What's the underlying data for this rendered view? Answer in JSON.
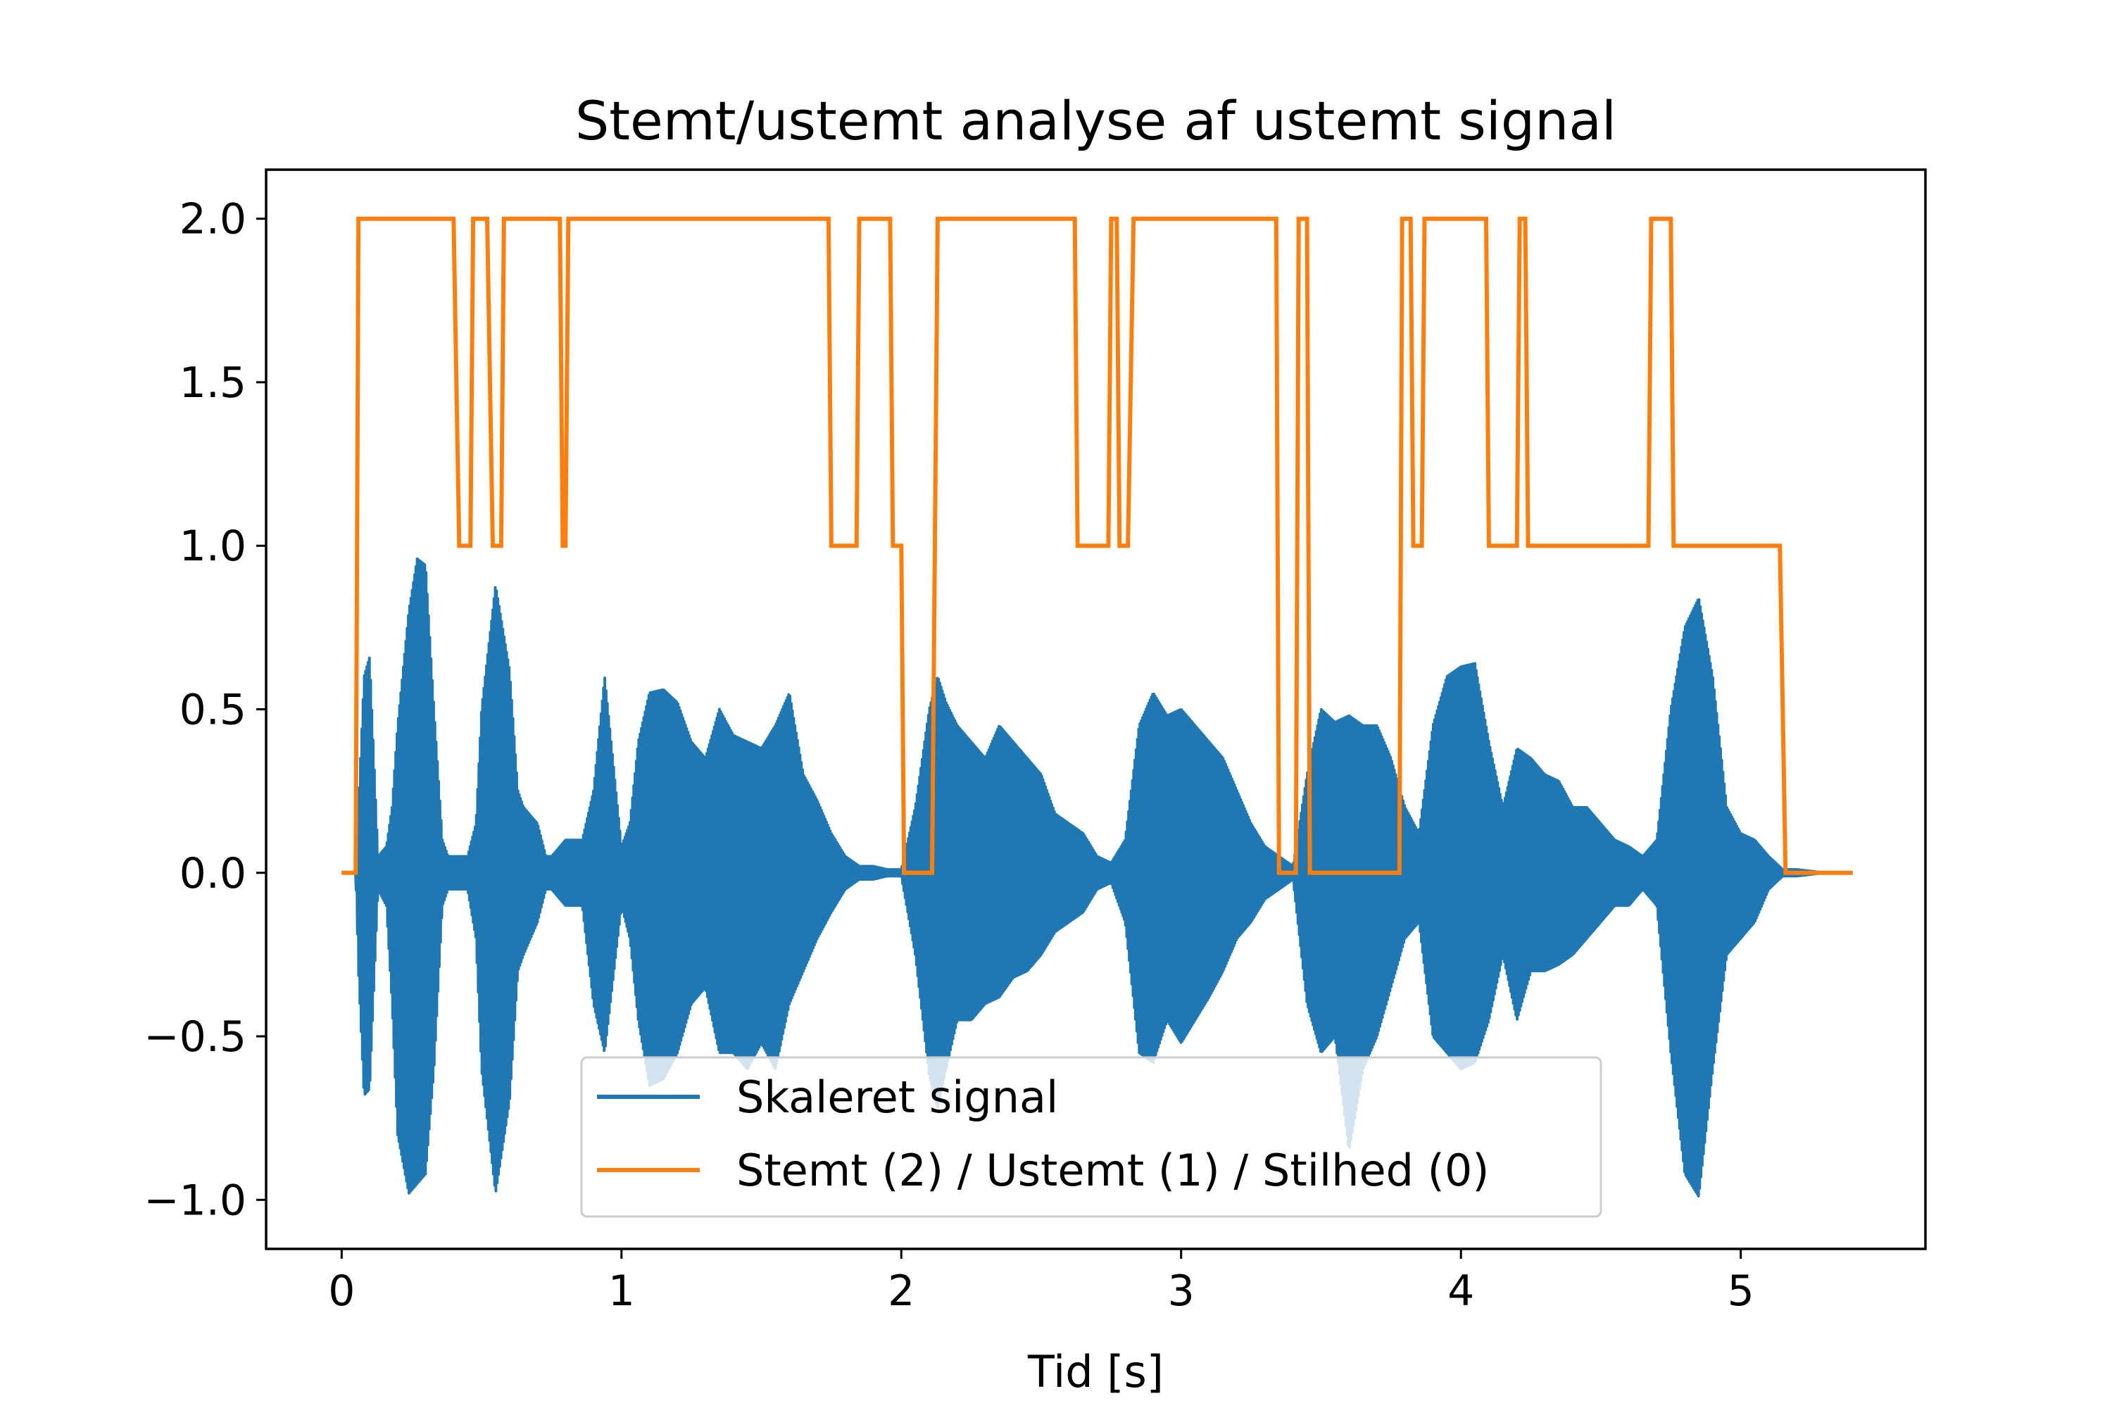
{
  "chart_data": {
    "type": "line",
    "title": "Stemt/ustemt analyse af ustemt signal",
    "xlabel": "Tid [s]",
    "ylabel": "",
    "xlim": [
      -0.27,
      5.66
    ],
    "ylim": [
      -1.15,
      2.15
    ],
    "xticks": [
      0,
      1,
      2,
      3,
      4,
      5
    ],
    "xtick_labels": [
      "0",
      "1",
      "2",
      "3",
      "4",
      "5"
    ],
    "yticks": [
      -1.0,
      -0.5,
      0.0,
      0.5,
      1.0,
      1.5,
      2.0
    ],
    "ytick_labels": [
      "−1.0",
      "−0.5",
      "0.0",
      "0.5",
      "1.0",
      "1.5",
      "2.0"
    ],
    "grid": false,
    "legend_position": "lower center",
    "series": [
      {
        "name": "Skaleret signal",
        "color": "#1f77b4",
        "style": "oscillating waveform shown by its envelope",
        "envelope": {
          "t": [
            0.0,
            0.05,
            0.06,
            0.08,
            0.1,
            0.13,
            0.16,
            0.18,
            0.2,
            0.24,
            0.27,
            0.3,
            0.33,
            0.36,
            0.38,
            0.41,
            0.45,
            0.48,
            0.5,
            0.55,
            0.6,
            0.63,
            0.65,
            0.7,
            0.73,
            0.75,
            0.8,
            0.86,
            0.9,
            0.94,
            1.0,
            1.03,
            1.06,
            1.1,
            1.15,
            1.2,
            1.25,
            1.3,
            1.35,
            1.4,
            1.45,
            1.5,
            1.55,
            1.6,
            1.65,
            1.7,
            1.75,
            1.8,
            1.85,
            1.9,
            1.95,
            2.0,
            2.05,
            2.1,
            2.13,
            2.16,
            2.2,
            2.25,
            2.3,
            2.35,
            2.4,
            2.45,
            2.5,
            2.55,
            2.6,
            2.65,
            2.7,
            2.75,
            2.8,
            2.85,
            2.9,
            2.95,
            3.0,
            3.05,
            3.1,
            3.15,
            3.2,
            3.25,
            3.3,
            3.35,
            3.4,
            3.45,
            3.5,
            3.55,
            3.6,
            3.65,
            3.7,
            3.75,
            3.8,
            3.85,
            3.9,
            3.95,
            4.0,
            4.05,
            4.1,
            4.15,
            4.2,
            4.25,
            4.3,
            4.35,
            4.4,
            4.45,
            4.5,
            4.55,
            4.6,
            4.65,
            4.7,
            4.75,
            4.8,
            4.85,
            4.9,
            4.95,
            5.0,
            5.05,
            5.1,
            5.15,
            5.2,
            5.3,
            5.4
          ],
          "upper": [
            0.0,
            0.0,
            0.2,
            0.6,
            0.66,
            0.05,
            0.08,
            0.2,
            0.45,
            0.8,
            0.96,
            0.94,
            0.5,
            0.1,
            0.05,
            0.05,
            0.05,
            0.15,
            0.5,
            0.88,
            0.62,
            0.25,
            0.2,
            0.15,
            0.05,
            0.05,
            0.1,
            0.1,
            0.25,
            0.6,
            0.08,
            0.15,
            0.4,
            0.55,
            0.56,
            0.52,
            0.4,
            0.35,
            0.5,
            0.42,
            0.4,
            0.38,
            0.45,
            0.55,
            0.3,
            0.22,
            0.12,
            0.05,
            0.02,
            0.02,
            0.01,
            0.01,
            0.2,
            0.5,
            0.6,
            0.52,
            0.45,
            0.4,
            0.35,
            0.45,
            0.4,
            0.35,
            0.3,
            0.18,
            0.15,
            0.12,
            0.05,
            0.03,
            0.1,
            0.45,
            0.55,
            0.48,
            0.5,
            0.45,
            0.4,
            0.35,
            0.25,
            0.15,
            0.08,
            0.05,
            0.02,
            0.3,
            0.5,
            0.46,
            0.48,
            0.45,
            0.45,
            0.35,
            0.2,
            0.12,
            0.45,
            0.6,
            0.63,
            0.64,
            0.4,
            0.2,
            0.38,
            0.35,
            0.3,
            0.28,
            0.2,
            0.2,
            0.15,
            0.1,
            0.08,
            0.05,
            0.1,
            0.5,
            0.75,
            0.84,
            0.6,
            0.2,
            0.12,
            0.1,
            0.05,
            0.01,
            0.01,
            0.0,
            0.0
          ],
          "lower": [
            0.0,
            0.0,
            -0.3,
            -0.68,
            -0.66,
            -0.05,
            -0.1,
            -0.4,
            -0.8,
            -0.98,
            -0.95,
            -0.92,
            -0.6,
            -0.1,
            -0.05,
            -0.05,
            -0.05,
            -0.2,
            -0.6,
            -0.98,
            -0.7,
            -0.3,
            -0.25,
            -0.15,
            -0.05,
            -0.05,
            -0.1,
            -0.1,
            -0.4,
            -0.55,
            -0.1,
            -0.2,
            -0.45,
            -0.65,
            -0.63,
            -0.55,
            -0.4,
            -0.35,
            -0.55,
            -0.55,
            -0.6,
            -0.52,
            -0.6,
            -0.4,
            -0.3,
            -0.2,
            -0.12,
            -0.05,
            -0.02,
            -0.02,
            -0.01,
            -0.01,
            -0.25,
            -0.62,
            -0.72,
            -0.6,
            -0.45,
            -0.45,
            -0.4,
            -0.38,
            -0.32,
            -0.3,
            -0.25,
            -0.18,
            -0.15,
            -0.12,
            -0.05,
            -0.03,
            -0.15,
            -0.55,
            -0.58,
            -0.45,
            -0.52,
            -0.45,
            -0.38,
            -0.3,
            -0.2,
            -0.15,
            -0.08,
            -0.05,
            -0.02,
            -0.4,
            -0.55,
            -0.5,
            -0.85,
            -0.6,
            -0.5,
            -0.35,
            -0.2,
            -0.15,
            -0.5,
            -0.55,
            -0.6,
            -0.58,
            -0.45,
            -0.25,
            -0.45,
            -0.3,
            -0.3,
            -0.28,
            -0.25,
            -0.2,
            -0.15,
            -0.1,
            -0.1,
            -0.05,
            -0.1,
            -0.55,
            -0.92,
            -0.99,
            -0.6,
            -0.25,
            -0.2,
            -0.15,
            -0.05,
            -0.01,
            -0.01,
            0.0,
            0.0
          ]
        }
      },
      {
        "name": "Stemt (2) / Ustemt (1) / Stilhed (0)",
        "color": "#ff7f0e",
        "style": "step",
        "x": [
          0.0,
          0.05,
          0.06,
          0.4,
          0.42,
          0.46,
          0.47,
          0.52,
          0.54,
          0.57,
          0.58,
          0.78,
          0.79,
          0.8,
          0.81,
          1.74,
          1.75,
          1.84,
          1.85,
          1.96,
          1.97,
          2.0,
          2.01,
          2.11,
          2.13,
          2.62,
          2.63,
          2.74,
          2.75,
          2.77,
          2.78,
          2.81,
          2.83,
          3.34,
          3.35,
          3.41,
          3.42,
          3.45,
          3.46,
          3.78,
          3.79,
          3.82,
          3.83,
          3.86,
          3.87,
          4.09,
          4.1,
          4.2,
          4.21,
          4.23,
          4.24,
          4.67,
          4.68,
          4.75,
          4.76,
          5.14,
          5.16,
          5.4
        ],
        "y": [
          0,
          0,
          2,
          2,
          1,
          1,
          2,
          2,
          1,
          1,
          2,
          2,
          1,
          1,
          2,
          2,
          1,
          1,
          2,
          2,
          1,
          1,
          0,
          0,
          2,
          2,
          1,
          1,
          2,
          2,
          1,
          1,
          2,
          2,
          0,
          0,
          2,
          2,
          0,
          0,
          2,
          2,
          1,
          1,
          2,
          2,
          1,
          1,
          2,
          2,
          1,
          1,
          2,
          2,
          1,
          1,
          0,
          0
        ]
      }
    ]
  }
}
